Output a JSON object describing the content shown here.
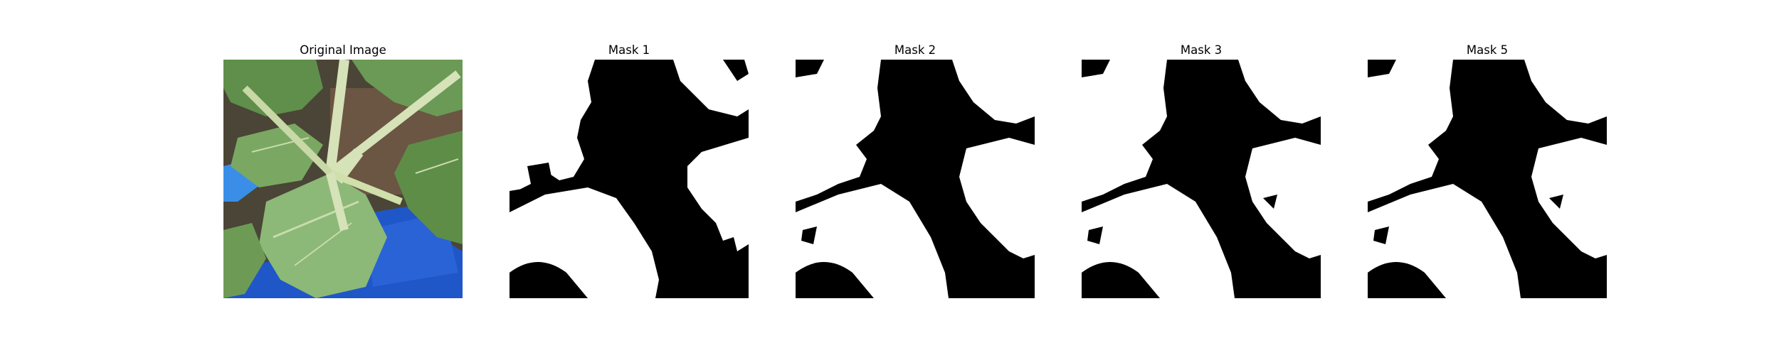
{
  "figure": {
    "panels": [
      {
        "title": "Original Image",
        "kind": "photo",
        "subject": "leafy-green-plant-photo"
      },
      {
        "title": "Mask 1",
        "kind": "mask"
      },
      {
        "title": "Mask 2",
        "kind": "mask"
      },
      {
        "title": "Mask 3",
        "kind": "mask"
      },
      {
        "title": "Mask 5",
        "kind": "mask"
      }
    ],
    "colors": {
      "mask_foreground": "#ffffff",
      "mask_background": "#000000",
      "leaf_green": "#5f8f4a",
      "leaf_light": "#a9c98a",
      "stem": "#d6e2b8",
      "container_blue": "#1f56c8",
      "soil_brown": "#6b5543"
    }
  }
}
